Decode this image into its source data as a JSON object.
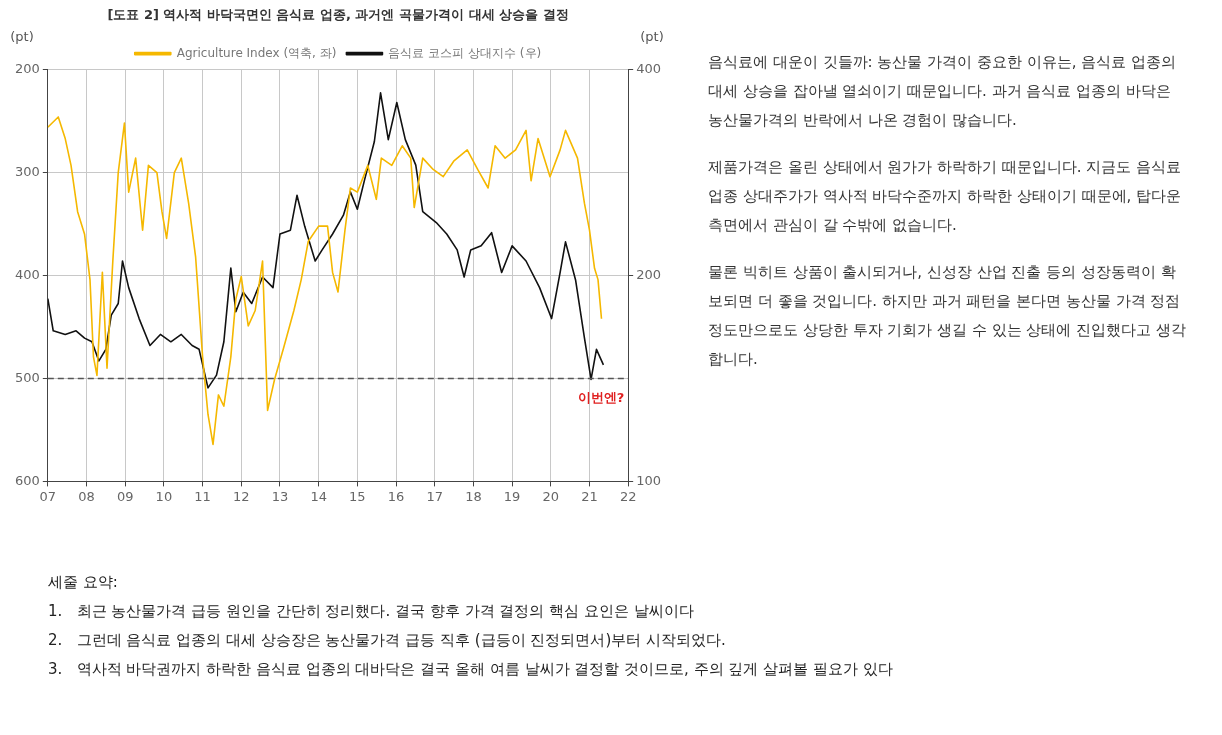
{
  "chart_data": {
    "type": "line",
    "title": "[도표 2] 역사적 바닥국면인 음식료 업종, 과거엔 곡물가격이 대세 상승을 결정",
    "ylabel": "(pt)",
    "y2label": "(pt)",
    "xlim": [
      2007,
      2022
    ],
    "xticks": [
      {
        "value": 2007,
        "label": "07"
      },
      {
        "value": 2008,
        "label": "08"
      },
      {
        "value": 2009,
        "label": "09"
      },
      {
        "value": 2010,
        "label": "10"
      },
      {
        "value": 2011,
        "label": "11"
      },
      {
        "value": 2012,
        "label": "12"
      },
      {
        "value": 2013,
        "label": "13"
      },
      {
        "value": 2014,
        "label": "14"
      },
      {
        "value": 2015,
        "label": "15"
      },
      {
        "value": 2016,
        "label": "16"
      },
      {
        "value": 2017,
        "label": "17"
      },
      {
        "value": 2018,
        "label": "18"
      },
      {
        "value": 2019,
        "label": "19"
      },
      {
        "value": 2020,
        "label": "20"
      },
      {
        "value": 2021,
        "label": "21"
      },
      {
        "value": 2022,
        "label": "22"
      }
    ],
    "ylim": [
      600,
      200
    ],
    "yticks": [
      200,
      300,
      400,
      500,
      600
    ],
    "y2lim": [
      100,
      400
    ],
    "y2ticks": [
      100,
      200,
      400
    ],
    "log": "y2",
    "grid": true,
    "legend": "top",
    "marker": "none",
    "line_style": "solid",
    "series": [
      {
        "name": "Agriculture Index (역축, 좌)",
        "color": "#f5b800",
        "axis": "y",
        "x": [
          2007.0,
          2007.27,
          2007.45,
          2007.6,
          2007.77,
          2007.95,
          2008.09,
          2008.18,
          2008.27,
          2008.41,
          2008.53,
          2008.68,
          2008.82,
          2008.98,
          2009.09,
          2009.27,
          2009.45,
          2009.6,
          2009.82,
          2009.95,
          2010.07,
          2010.27,
          2010.45,
          2010.64,
          2010.82,
          2011.0,
          2011.14,
          2011.27,
          2011.41,
          2011.55,
          2011.73,
          2011.86,
          2012.0,
          2012.18,
          2012.36,
          2012.55,
          2012.68,
          2012.86,
          2013.09,
          2013.36,
          2013.55,
          2013.73,
          2014.0,
          2014.23,
          2014.36,
          2014.5,
          2014.68,
          2014.82,
          2015.0,
          2015.27,
          2015.49,
          2015.62,
          2015.89,
          2016.16,
          2016.38,
          2016.47,
          2016.69,
          2016.96,
          2017.22,
          2017.49,
          2017.84,
          2018.11,
          2018.38,
          2018.56,
          2018.82,
          2019.09,
          2019.36,
          2019.49,
          2019.67,
          2019.98,
          2020.24,
          2020.38,
          2020.69,
          2020.87,
          2021.0,
          2021.13,
          2021.22,
          2021.31
        ],
        "values": [
          256,
          246,
          267,
          293,
          338,
          360,
          404,
          479,
          497,
          397,
          490,
          386,
          300,
          252,
          319,
          286,
          356,
          293,
          300,
          338,
          364,
          300,
          286,
          330,
          382,
          479,
          535,
          564,
          516,
          527,
          479,
          423,
          401,
          449,
          434,
          386,
          531,
          501,
          471,
          434,
          404,
          367,
          352,
          352,
          397,
          416,
          356,
          315,
          319,
          293,
          326,
          286,
          293,
          274,
          286,
          334,
          286,
          297,
          304,
          289,
          278,
          297,
          315,
          274,
          286,
          278,
          259,
          308,
          267,
          304,
          278,
          259,
          286,
          330,
          356,
          393,
          404,
          442
        ]
      },
      {
        "name": "음식료 코스피 상대지수 (우)",
        "color": "#111111",
        "axis": "y2",
        "x": [
          2007.0,
          2007.14,
          2007.45,
          2007.73,
          2007.95,
          2008.14,
          2008.32,
          2008.5,
          2008.64,
          2008.82,
          2008.93,
          2009.09,
          2009.36,
          2009.64,
          2009.91,
          2010.18,
          2010.45,
          2010.73,
          2010.91,
          2011.14,
          2011.36,
          2011.55,
          2011.73,
          2011.86,
          2012.05,
          2012.27,
          2012.55,
          2012.82,
          2013.0,
          2013.27,
          2013.44,
          2013.64,
          2013.91,
          2014.09,
          2014.36,
          2014.64,
          2014.82,
          2015.0,
          2015.18,
          2015.44,
          2015.6,
          2015.8,
          2016.02,
          2016.24,
          2016.51,
          2016.69,
          2017.04,
          2017.31,
          2017.58,
          2017.76,
          2017.93,
          2018.2,
          2018.47,
          2018.73,
          2019.0,
          2019.36,
          2019.71,
          2020.02,
          2020.24,
          2020.38,
          2020.64,
          2020.87,
          2021.04,
          2021.18,
          2021.36
        ],
        "values": [
          185,
          166,
          164,
          166,
          162,
          160,
          150,
          156,
          175,
          182,
          210,
          192,
          173,
          158,
          164,
          160,
          164,
          158,
          156,
          137,
          143,
          160,
          205,
          177,
          189,
          182,
          199,
          192,
          230,
          233,
          262,
          236,
          210,
          218,
          230,
          245,
          265,
          250,
          275,
          314,
          370,
          316,
          358,
          316,
          290,
          248,
          239,
          230,
          218,
          199,
          218,
          221,
          231,
          202,
          221,
          210,
          192,
          173,
          202,
          224,
          197,
          162,
          141,
          156,
          148
        ]
      }
    ],
    "ref_lines": [
      {
        "axis": "y",
        "value": 500,
        "color": "#555555",
        "line_style": "dashed"
      }
    ],
    "annotations": [
      "이번엔?",
      "음식료에 대운이 깃들까: 농산물 가격이 중요한 이유는, 음식료 업종의 대세 상승을 잡아낼 열쇠이기 때문입니다. 과거 음식료 업종의 바닥은 농산물가격의 반락에서 나온 경험이 많습니다.",
      "제품가격은 올린 상태에서 원가가 하락하기 때문입니다. 지금도 음식료 업종 상대주가가 역사적 바닥수준까지 하락한 상태이기 때문에, 탑다운 측면에서 관심이 갈 수밖에 없습니다.",
      "물론 빅히트 상품이 출시되거나, 신성장 산업 진출 등의 성장동력이 확보되면 더 좋을 것입니다. 하지만 과거 패턴을 본다면 농산물 가격 정점 정도만으로도 상당한 투자 기회가 생길 수 있는 상태에 진입했다고 생각합니다.",
      "세줄 요약:",
      "1.   최근 농산물가격 급등 원인을 간단히 정리했다. 결국 향후 가격 결정의 핵심 요인은 날씨이다",
      "2.   그런데 음식료 업종의 대세 상승장은 농산물가격 급등 직후 (급등이 진정되면서)부터 시작되었다.",
      "3.   역사적 바닥권까지 하락한 음식료 업종의 대바닥은 결국 올해 여름 날씨가 결정할 것이므로, 주의 깊게 살펴볼 필요가 있다"
    ]
  }
}
